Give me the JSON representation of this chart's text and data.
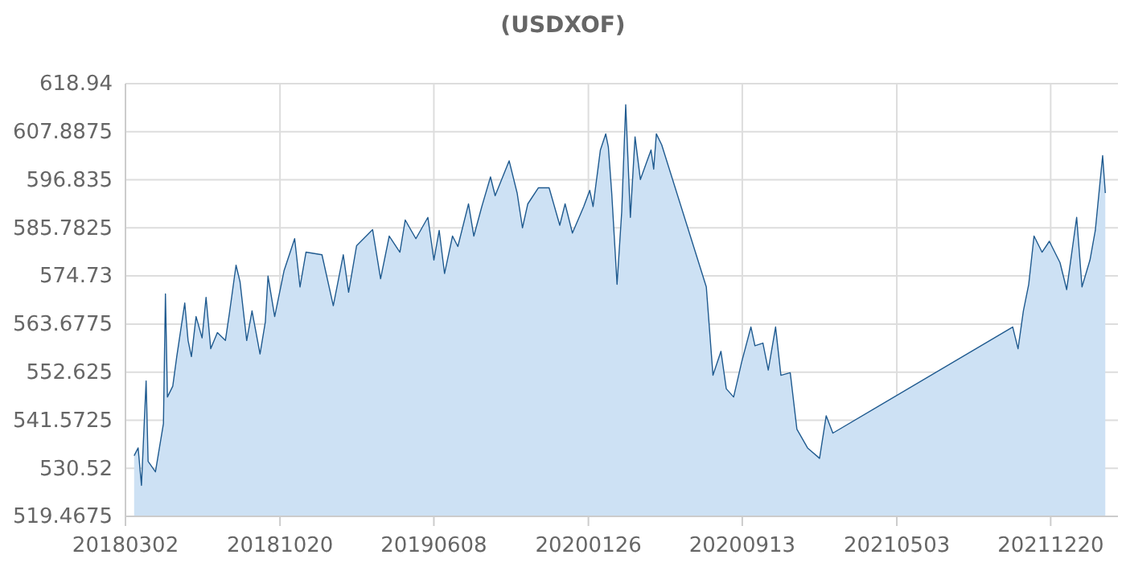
{
  "chart_data": {
    "type": "area",
    "title": "(USDXOF)",
    "x": [
      "2018-03-15",
      "2018-03-21",
      "2018-03-26",
      "2018-04-02",
      "2018-04-05",
      "2018-04-16",
      "2018-04-24",
      "2018-04-28",
      "2018-05-01",
      "2018-05-04",
      "2018-05-12",
      "2018-05-18",
      "2018-05-30",
      "2018-06-04",
      "2018-06-09",
      "2018-06-16",
      "2018-06-25",
      "2018-07-01",
      "2018-07-08",
      "2018-07-18",
      "2018-07-30",
      "2018-08-05",
      "2018-08-15",
      "2018-08-21",
      "2018-08-31",
      "2018-09-08",
      "2018-09-20",
      "2018-09-28",
      "2018-10-02",
      "2018-10-12",
      "2018-10-26",
      "2018-11-11",
      "2018-11-19",
      "2018-11-28",
      "2018-12-22",
      "2019-01-08",
      "2019-01-23",
      "2019-01-31",
      "2019-02-12",
      "2019-03-08",
      "2019-03-20",
      "2019-04-02",
      "2019-04-18",
      "2019-04-26",
      "2019-05-12",
      "2019-05-30",
      "2019-06-08",
      "2019-06-16",
      "2019-06-24",
      "2019-07-06",
      "2019-07-14",
      "2019-07-30",
      "2019-08-07",
      "2019-08-19",
      "2019-09-01",
      "2019-09-08",
      "2019-09-29",
      "2019-10-11",
      "2019-10-19",
      "2019-10-27",
      "2019-11-12",
      "2019-11-28",
      "2019-12-14",
      "2019-12-22",
      "2020-01-02",
      "2020-01-19",
      "2020-01-28",
      "2020-02-02",
      "2020-02-13",
      "2020-02-21",
      "2020-02-25",
      "2020-03-01",
      "2020-03-09",
      "2020-03-16",
      "2020-03-22",
      "2020-03-29",
      "2020-04-05",
      "2020-04-13",
      "2020-04-29",
      "2020-05-03",
      "2020-05-07",
      "2020-05-15",
      "2020-07-21",
      "2020-07-31",
      "2020-08-12",
      "2020-08-20",
      "2020-08-31",
      "2020-09-12",
      "2020-09-26",
      "2020-10-02",
      "2020-10-14",
      "2020-10-22",
      "2020-11-02",
      "2020-11-10",
      "2020-11-24",
      "2020-12-04",
      "2020-12-20",
      "2021-01-07",
      "2021-01-17",
      "2021-01-27",
      "2021-10-24",
      "2021-11-01",
      "2021-11-09",
      "2021-11-17",
      "2021-11-25",
      "2021-12-07",
      "2021-12-18",
      "2022-01-03",
      "2022-01-13",
      "2022-01-28",
      "2022-02-05",
      "2022-02-17",
      "2022-02-25",
      "2022-03-08",
      "2022-03-12"
    ],
    "series": [
      {
        "color": "#1f5a8f",
        "values": [
          533.4,
          535.2,
          526.6,
          550.6,
          532.1,
          529.7,
          537.1,
          540.8,
          570.6,
          546.9,
          549.4,
          556.2,
          568.5,
          559.9,
          556.2,
          565.4,
          560.5,
          569.8,
          558.0,
          561.7,
          559.9,
          566.1,
          577.2,
          573.4,
          559.9,
          566.7,
          556.8,
          564.2,
          574.7,
          565.4,
          575.9,
          583.3,
          572.2,
          580.2,
          579.6,
          567.9,
          579.6,
          571.0,
          581.7,
          585.4,
          574.1,
          583.9,
          580.2,
          587.6,
          583.3,
          588.2,
          578.4,
          585.2,
          575.3,
          583.9,
          581.5,
          591.3,
          583.9,
          590.7,
          597.5,
          593.2,
          601.2,
          593.8,
          585.8,
          591.3,
          595.0,
          595.0,
          586.4,
          591.3,
          584.6,
          590.7,
          594.4,
          590.7,
          603.7,
          607.4,
          604.3,
          593.8,
          572.8,
          589.5,
          614.1,
          588.2,
          606.7,
          596.9,
          603.7,
          599.3,
          607.4,
          604.9,
          572.2,
          551.9,
          557.4,
          548.8,
          546.9,
          554.9,
          563.0,
          558.7,
          559.3,
          553.1,
          563.0,
          551.9,
          552.5,
          539.5,
          535.2,
          532.8,
          542.6,
          538.6,
          563.0,
          558.0,
          566.7,
          572.8,
          583.9,
          580.2,
          582.7,
          577.8,
          571.6,
          588.2,
          572.2,
          578.4,
          585.2,
          602.4,
          593.8
        ]
      }
    ],
    "xlim": [
      "2018-03-02",
      "2022-03-31"
    ],
    "xticks": [
      {
        "value": "2018-03-02",
        "label": "20180302"
      },
      {
        "value": "2018-10-20",
        "label": "20181020"
      },
      {
        "value": "2019-06-08",
        "label": "20190608"
      },
      {
        "value": "2020-01-26",
        "label": "20200126"
      },
      {
        "value": "2020-09-13",
        "label": "20200913"
      },
      {
        "value": "2021-05-03",
        "label": "20210503"
      },
      {
        "value": "2021-12-20",
        "label": "20211220"
      }
    ],
    "ylim": [
      519.4675,
      618.94
    ],
    "yticks": [
      519.4675,
      530.52,
      541.5725,
      552.625,
      563.6775,
      574.73,
      585.7825,
      596.835,
      607.8875,
      618.94
    ],
    "grid": true
  }
}
